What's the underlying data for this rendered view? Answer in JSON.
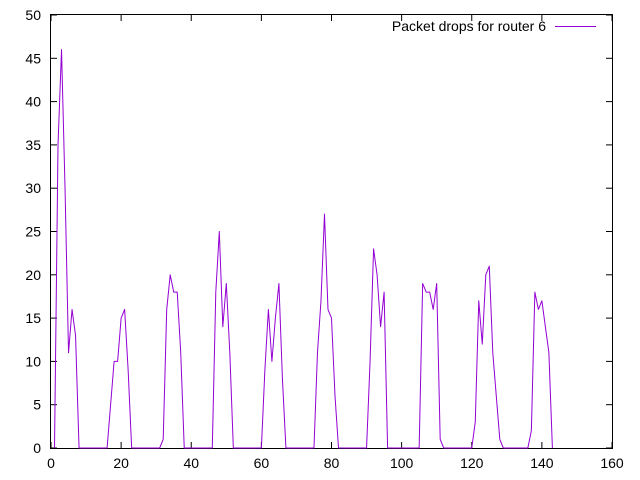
{
  "chart_data": {
    "type": "line",
    "title": "",
    "xlabel": "",
    "ylabel": "",
    "xlim": [
      0,
      160
    ],
    "ylim": [
      0,
      50
    ],
    "xticks": [
      0,
      20,
      40,
      60,
      80,
      100,
      120,
      140,
      160
    ],
    "yticks": [
      0,
      5,
      10,
      15,
      20,
      25,
      30,
      35,
      40,
      45,
      50
    ],
    "grid": false,
    "legend_position": "top-right",
    "series": [
      {
        "name": "Packet drops for router 6",
        "color": "#9400d3",
        "x": [
          1,
          2,
          3,
          4,
          5,
          6,
          7,
          8,
          9,
          10,
          11,
          12,
          13,
          14,
          15,
          16,
          17,
          18,
          19,
          20,
          21,
          22,
          23,
          24,
          25,
          26,
          27,
          28,
          29,
          30,
          31,
          32,
          33,
          34,
          35,
          36,
          37,
          38,
          39,
          40,
          41,
          42,
          43,
          44,
          45,
          46,
          47,
          48,
          49,
          50,
          51,
          52,
          53,
          54,
          55,
          56,
          57,
          58,
          59,
          60,
          61,
          62,
          63,
          64,
          65,
          66,
          67,
          68,
          69,
          70,
          71,
          72,
          73,
          74,
          75,
          76,
          77,
          78,
          79,
          80,
          81,
          82,
          83,
          84,
          85,
          86,
          87,
          88,
          89,
          90,
          91,
          92,
          93,
          94,
          95,
          96,
          97,
          98,
          99,
          100,
          101,
          102,
          103,
          104,
          105,
          106,
          107,
          108,
          109,
          110,
          111,
          112,
          113,
          114,
          115,
          116,
          117,
          118,
          119,
          120,
          121,
          122,
          123,
          124,
          125,
          126,
          127,
          128,
          129,
          130,
          131,
          132,
          133,
          134,
          135,
          136,
          137,
          138,
          139,
          140,
          141,
          142,
          143
        ],
        "y": [
          0,
          35,
          46,
          30,
          11,
          16,
          13,
          0,
          0,
          0,
          0,
          0,
          0,
          0,
          0,
          0,
          5,
          10,
          10,
          15,
          16,
          9,
          0,
          0,
          0,
          0,
          0,
          0,
          0,
          0,
          0,
          1,
          16,
          20,
          18,
          18,
          11,
          0,
          0,
          0,
          0,
          0,
          0,
          0,
          0,
          0,
          18,
          25,
          14,
          19,
          11,
          0,
          0,
          0,
          0,
          0,
          0,
          0,
          0,
          0,
          9,
          16,
          10,
          15,
          19,
          8,
          0,
          0,
          0,
          0,
          0,
          0,
          0,
          0,
          0,
          11,
          17,
          27,
          16,
          15,
          6,
          0,
          0,
          0,
          0,
          0,
          0,
          0,
          0,
          0,
          10,
          23,
          20,
          14,
          18,
          0,
          0,
          0,
          0,
          0,
          0,
          0,
          0,
          0,
          0,
          19,
          18,
          18,
          16,
          19,
          1,
          0,
          0,
          0,
          0,
          0,
          0,
          0,
          0,
          0,
          3,
          17,
          12,
          20,
          21,
          11,
          6,
          1,
          0,
          0,
          0,
          0,
          0,
          0,
          0,
          0,
          2,
          18,
          16,
          17,
          14,
          11,
          0
        ]
      }
    ]
  }
}
